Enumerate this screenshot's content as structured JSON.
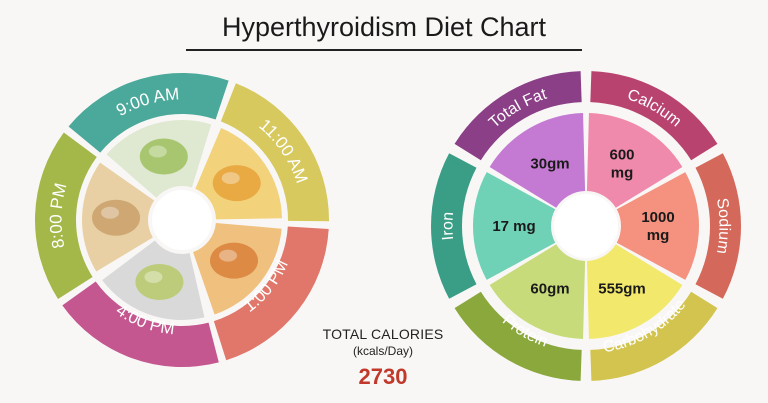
{
  "title": "Hyperthyroidism Diet Chart",
  "calories": {
    "label": "TOTAL CALORIES",
    "units": "(kcals/Day)",
    "value": "2730"
  },
  "meal_wheel": {
    "segments": [
      {
        "label": "9:00 AM",
        "color": "#4aa99a",
        "food_icon": "tea-cup-icon"
      },
      {
        "label": "11:00 AM",
        "color": "#d7c95d",
        "food_icon": "mango-basket-icon"
      },
      {
        "label": "1:00 PM",
        "color": "#e0776a",
        "food_icon": "chicken-dish-icon"
      },
      {
        "label": "4:00 PM",
        "color": "#c4578f",
        "food_icon": "soup-bowl-icon"
      },
      {
        "label": "8:00 PM",
        "color": "#a3b849",
        "food_icon": "chapati-icon"
      }
    ]
  },
  "nutrient_wheel": {
    "outer": [
      {
        "label": "Total Fat",
        "color": "#8a3f86"
      },
      {
        "label": "Calcium",
        "color": "#b8436f"
      },
      {
        "label": "Sodium",
        "color": "#d4685a"
      },
      {
        "label": "Carbohydrate",
        "color": "#d2c44e"
      },
      {
        "label": "Protein",
        "color": "#8aa83c"
      },
      {
        "label": "Iron",
        "color": "#3a9e86"
      }
    ],
    "inner": [
      {
        "value": "30gm",
        "color": "#c47ad3"
      },
      {
        "value": "600\nmg",
        "color": "#f08aac"
      },
      {
        "value": "1000\nmg",
        "color": "#f5917f"
      },
      {
        "value": "555gm",
        "color": "#f2e86c"
      },
      {
        "value": "60gm",
        "color": "#c7db7b"
      },
      {
        "value": "17 mg",
        "color": "#6fd2b6"
      }
    ]
  }
}
